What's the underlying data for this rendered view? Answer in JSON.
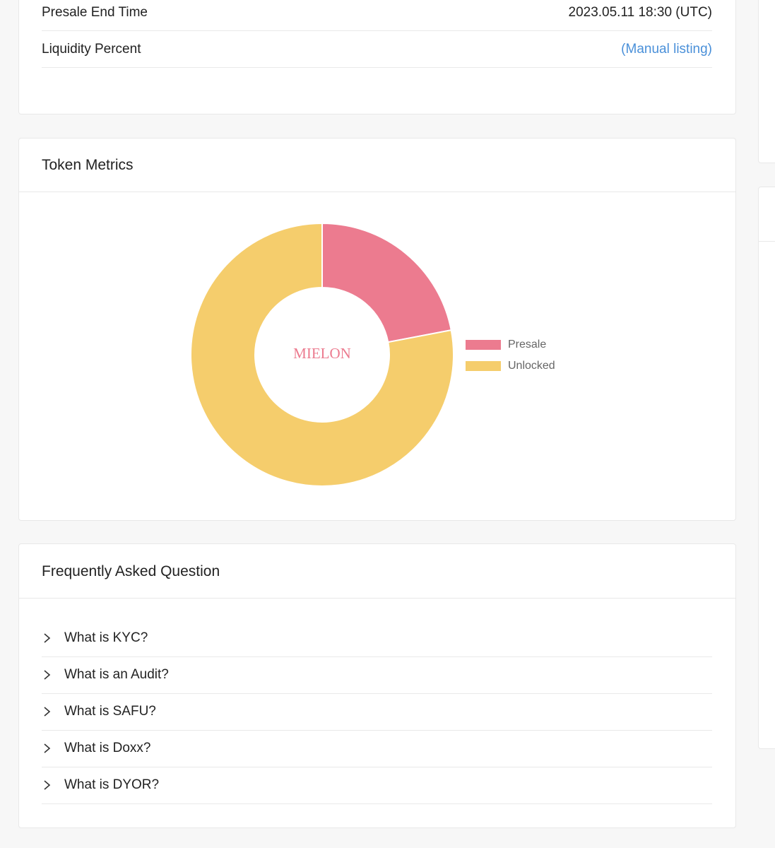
{
  "presale_info": {
    "rows": [
      {
        "label": "Presale End Time",
        "value": "2023.05.11 18:30 (UTC)"
      },
      {
        "label": "Liquidity Percent",
        "value": "(Manual listing)"
      }
    ]
  },
  "token_metrics": {
    "title": "Token Metrics"
  },
  "chart_data": {
    "type": "pie",
    "donut": true,
    "center_label": "MIELON",
    "categories": [
      "Presale",
      "Unlocked"
    ],
    "values": [
      22,
      78
    ],
    "colors": [
      "#ec7b8f",
      "#f5cd6c"
    ],
    "legend": "right"
  },
  "faq": {
    "title": "Frequently Asked Question",
    "items": [
      "What is KYC?",
      "What is an Audit?",
      "What is SAFU?",
      "What is Doxx?",
      "What is DYOR?"
    ]
  }
}
